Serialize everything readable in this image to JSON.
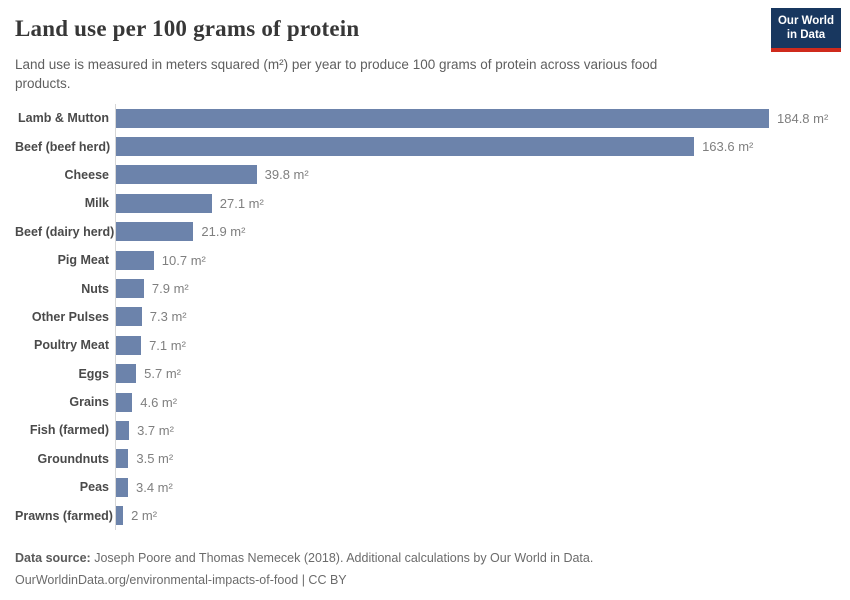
{
  "header": {
    "title": "Land use per 100 grams of protein",
    "subtitle": "Land use is measured in meters squared (m²) per year to produce 100 grams of protein across various food products.",
    "logo": {
      "line1": "Our World",
      "line2": "in Data",
      "bg_color": "#18375f",
      "accent_color": "#cf2a1c"
    }
  },
  "chart_data": {
    "type": "bar",
    "orientation": "horizontal",
    "title": "Land use per 100 grams of protein",
    "xlabel": "",
    "ylabel": "",
    "unit": "m²",
    "xlim": [
      0,
      185
    ],
    "grid": false,
    "legend": false,
    "bar_color": "#6c83ab",
    "categories": [
      "Lamb & Mutton",
      "Beef (beef herd)",
      "Cheese",
      "Milk",
      "Beef (dairy herd)",
      "Pig Meat",
      "Nuts",
      "Other Pulses",
      "Poultry Meat",
      "Eggs",
      "Grains",
      "Fish (farmed)",
      "Groundnuts",
      "Peas",
      "Prawns (farmed)"
    ],
    "values": [
      184.8,
      163.6,
      39.8,
      27.1,
      21.9,
      10.7,
      7.9,
      7.3,
      7.1,
      5.7,
      4.6,
      3.7,
      3.5,
      3.4,
      2
    ],
    "value_labels": [
      "184.8 m²",
      "163.6 m²",
      "39.8 m²",
      "27.1 m²",
      "21.9 m²",
      "10.7 m²",
      "7.9 m²",
      "7.3 m²",
      "7.1 m²",
      "5.7 m²",
      "4.6 m²",
      "3.7 m²",
      "3.5 m²",
      "3.4 m²",
      "2 m²"
    ]
  },
  "footer": {
    "source_label": "Data source:",
    "source_text": "Joseph Poore and Thomas Nemecek (2018). Additional calculations by Our World in Data.",
    "citation_line": "OurWorldinData.org/environmental-impacts-of-food | CC BY"
  }
}
